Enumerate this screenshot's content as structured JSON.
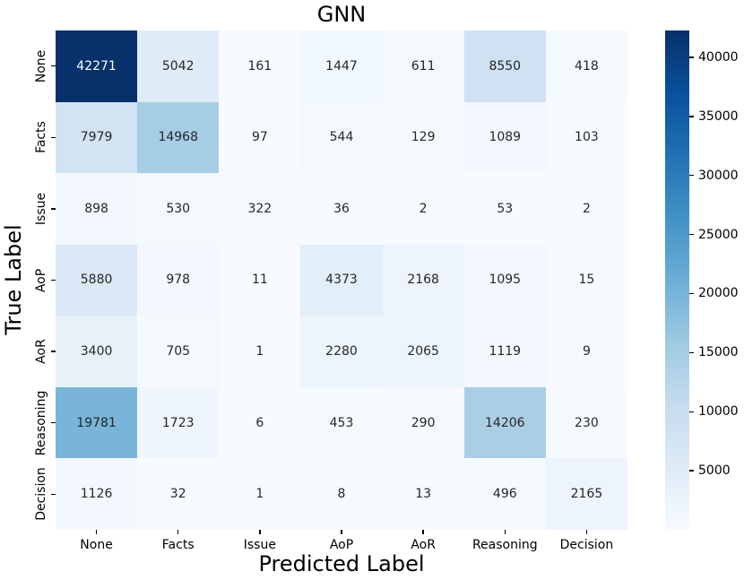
{
  "chart_data": {
    "type": "heatmap",
    "title": "GNN",
    "xlabel": "Predicted Label",
    "ylabel": "True Label",
    "x_categories": [
      "None",
      "Facts",
      "Issue",
      "AoP",
      "AoR",
      "Reasoning",
      "Decision"
    ],
    "y_categories": [
      "None",
      "Facts",
      "Issue",
      "AoP",
      "AoR",
      "Reasoning",
      "Decision"
    ],
    "matrix": [
      [
        42271,
        5042,
        161,
        1447,
        611,
        8550,
        418
      ],
      [
        7979,
        14968,
        97,
        544,
        129,
        1089,
        103
      ],
      [
        898,
        530,
        322,
        36,
        2,
        53,
        2
      ],
      [
        5880,
        978,
        11,
        4373,
        2168,
        1095,
        15
      ],
      [
        3400,
        705,
        1,
        2280,
        2065,
        1119,
        9
      ],
      [
        19781,
        1723,
        6,
        453,
        290,
        14206,
        230
      ],
      [
        1126,
        32,
        1,
        8,
        13,
        496,
        2165
      ]
    ],
    "vmin": 1,
    "vmax": 42271,
    "colormap": "Blues",
    "colormap_stops": [
      "#f7fbff",
      "#deebf7",
      "#c6dbef",
      "#9ecae1",
      "#6baed6",
      "#4292c6",
      "#2171b5",
      "#08519c",
      "#08306b"
    ],
    "colorbar_ticks": [
      5000,
      10000,
      15000,
      20000,
      25000,
      30000,
      35000,
      40000
    ],
    "annotation_dark_color": "#262626",
    "annotation_light_color": "#ffffff",
    "legend_position": "right-colorbar",
    "grid": false
  }
}
